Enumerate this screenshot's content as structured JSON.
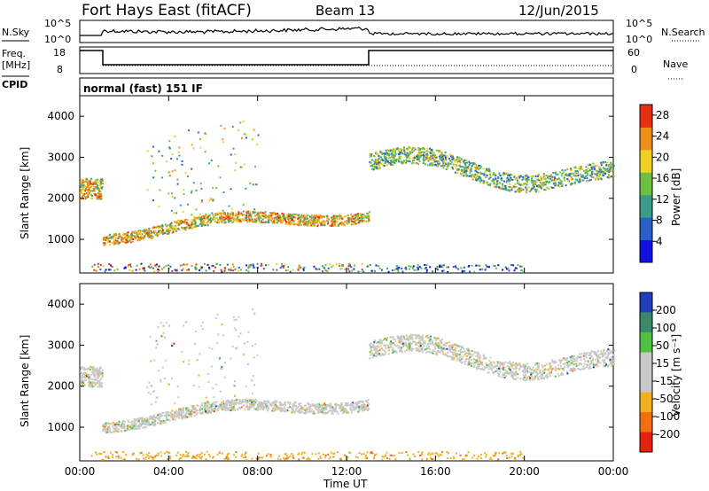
{
  "header": {
    "station": "Fort Hays East (fitACF)",
    "beam": "Beam 13",
    "date": "12/Jun/2015"
  },
  "panels": {
    "noise": {
      "left_label": "N.Sky",
      "right_label": "N.Search",
      "left_ticks": [
        "10^5",
        "10^0"
      ],
      "right_ticks": [
        "10^5",
        "10^0"
      ]
    },
    "freq": {
      "left_label": "Freq.",
      "left_unit": "[MHz]",
      "left_ticks": [
        "18",
        "8"
      ],
      "right_ticks": [
        "60",
        "0"
      ],
      "right_label": "Nave",
      "cpid_label": "CPID"
    },
    "cpid_text": "normal (fast) 151 IF"
  },
  "chart_data": [
    {
      "type": "heatmap",
      "title": "Power",
      "ylabel": "Slant Range [km]",
      "xlabel": "Time UT",
      "ylim": [
        180,
        4500
      ],
      "y_ticks": [
        "1000",
        "2000",
        "3000",
        "4000"
      ],
      "colorbar": {
        "label": "Power [dB]",
        "ticks": [
          "4",
          "8",
          "12",
          "16",
          "20",
          "24",
          "28"
        ],
        "colors": [
          "#1010e0",
          "#2860c8",
          "#3a9c88",
          "#6cc040",
          "#f0d020",
          "#f09018",
          "#e83010"
        ]
      },
      "features": [
        {
          "hour_start": 0,
          "hour_end": 1.0,
          "range_km": 2300,
          "power_db": 20
        },
        {
          "hour_start": 1.0,
          "hour_end": 13.0,
          "range_km_start": 1200,
          "range_km_end": 1700,
          "power_db": 24
        },
        {
          "hour_start": 13.0,
          "hour_end": 24.0,
          "range_km_start": 3000,
          "range_km_end": 2400,
          "power_db": 16
        }
      ]
    },
    {
      "type": "heatmap",
      "title": "Velocity",
      "ylabel": "Slant Range [km]",
      "xlabel": "Time UT",
      "ylim": [
        180,
        4500
      ],
      "y_ticks": [
        "1000",
        "2000",
        "3000",
        "4000"
      ],
      "colorbar": {
        "label": "Velocity [m s⁻¹]",
        "ticks": [
          "200",
          "100",
          "50",
          "15",
          "-15",
          "-50",
          "-100",
          "-200"
        ],
        "colors": [
          "#2040c0",
          "#3a8a6a",
          "#50c040",
          "#c8c8c8",
          "#c8c8c8",
          "#f0b020",
          "#f07010",
          "#e82010"
        ]
      },
      "features": [
        {
          "hour_start": 0,
          "hour_end": 13.0,
          "range_km": 1400,
          "velocity_ms": 0
        },
        {
          "hour_start": 13.0,
          "hour_end": 24.0,
          "range_km": 2600,
          "velocity_ms": 0
        },
        {
          "hour_start": 0,
          "hour_end": 13.0,
          "range_km": 300,
          "velocity_ms": -40
        }
      ]
    }
  ],
  "x_axis": {
    "ticks": [
      "00:00",
      "04:00",
      "08:00",
      "12:00",
      "16:00",
      "20:00",
      "00:00"
    ],
    "label": "Time UT"
  },
  "colors": {
    "background": "#ffffff",
    "axis": "#000000",
    "echo_gray": "#c8c8c8"
  }
}
